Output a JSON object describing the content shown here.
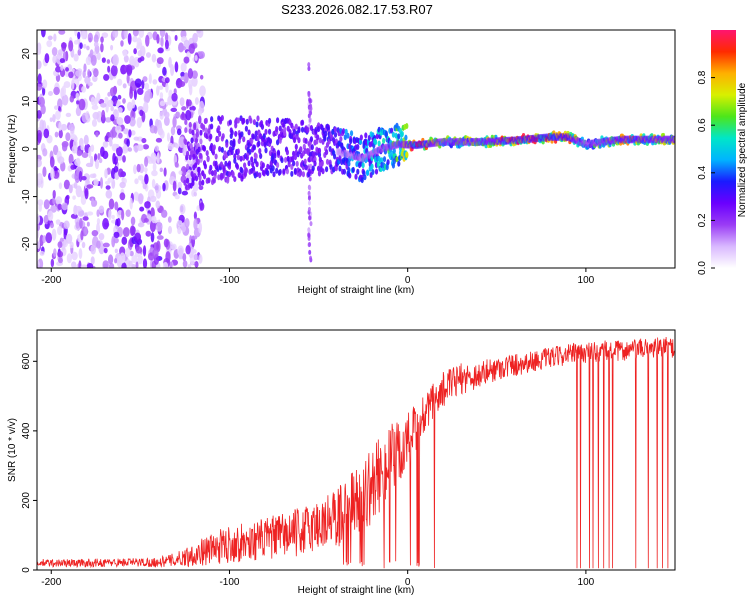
{
  "figure": {
    "title": "S233.2026.082.17.53.R07"
  },
  "colorbar": {
    "label": "Normalized spectral amplitude",
    "ticks": [
      "0.0",
      "0.2",
      "0.4",
      "0.6",
      "0.8"
    ],
    "tick_values": [
      0.0,
      0.2,
      0.4,
      0.6,
      0.8
    ],
    "range": [
      0,
      1
    ],
    "gradient_stops": [
      "#ffffff",
      "#d9b8ff",
      "#9a3cf5",
      "#6a00ff",
      "#1a1aff",
      "#00b4ff",
      "#00e6c8",
      "#4de61a",
      "#d8f000",
      "#ffb000",
      "#ff2a00",
      "#ff1470"
    ]
  },
  "colors": {
    "snr_line": "#ee2222",
    "axis": "#000000"
  },
  "chart_data": [
    {
      "type": "heatmap",
      "title": "",
      "xlabel": "Height of straight line (km)",
      "ylabel": "Frequency (Hz)",
      "xlim": [
        -208,
        150
      ],
      "ylim": [
        -25,
        25
      ],
      "xticks": [
        -200,
        -100,
        0,
        100
      ],
      "xtick_labels": [
        "-200",
        "-100",
        "0",
        "100"
      ],
      "yticks": [
        -20,
        -10,
        0,
        10,
        20
      ],
      "ytick_labels": [
        "-20",
        "-10",
        "0",
        "10",
        "20"
      ],
      "description_series": [
        {
          "name": "noise_spread",
          "x_range": [
            -208,
            -125
          ],
          "freq_range": [
            -25,
            25
          ],
          "amplitude": [
            0.05,
            0.3
          ]
        },
        {
          "name": "frequency_track",
          "x": [
            -125,
            -100,
            -80,
            -60,
            -45,
            -35,
            -25,
            -15,
            -5,
            5,
            20,
            40,
            60,
            80,
            90,
            100,
            120,
            150
          ],
          "freq": [
            -1.5,
            0,
            0.5,
            0,
            0,
            -1,
            -2,
            0,
            1,
            0.8,
            1.5,
            1.5,
            1.8,
            2.5,
            2.5,
            1,
            2,
            2
          ],
          "amplitude": [
            0.25,
            0.3,
            0.3,
            0.3,
            0.3,
            0.4,
            0.45,
            0.5,
            0.6,
            0.95,
            0.6,
            0.7,
            0.85,
            0.9,
            0.9,
            0.5,
            0.8,
            0.7
          ]
        },
        {
          "name": "vertical_artifact",
          "x": -55,
          "freq_range": [
            -25,
            18
          ],
          "amplitude": 0.15
        }
      ]
    },
    {
      "type": "line",
      "title": "",
      "xlabel": "Height of straight line (km)",
      "ylabel": "SNR (10 * v/v)",
      "xlim": [
        -208,
        150
      ],
      "ylim": [
        0,
        690
      ],
      "xticks": [
        -200,
        -100,
        0,
        100
      ],
      "xtick_labels": [
        "-200",
        "-100",
        "0",
        "100"
      ],
      "yticks": [
        0,
        200,
        400,
        600
      ],
      "ytick_labels": [
        "0",
        "200",
        "400",
        "600"
      ],
      "series": [
        {
          "name": "SNR",
          "x": [
            -208,
            -180,
            -160,
            -140,
            -130,
            -120,
            -110,
            -100,
            -90,
            -80,
            -70,
            -60,
            -50,
            -40,
            -30,
            -20,
            -15,
            -10,
            -5,
            0,
            5,
            10,
            15,
            20,
            30,
            40,
            50,
            60,
            70,
            80,
            90,
            100,
            110,
            120,
            130,
            140,
            150
          ],
          "mean": [
            20,
            20,
            22,
            22,
            30,
            45,
            60,
            75,
            80,
            90,
            100,
            110,
            130,
            150,
            190,
            240,
            280,
            310,
            330,
            370,
            400,
            450,
            480,
            520,
            550,
            560,
            580,
            590,
            600,
            610,
            620,
            625,
            630,
            630,
            635,
            640,
            640
          ],
          "spread": [
            12,
            12,
            12,
            14,
            20,
            35,
            45,
            55,
            55,
            60,
            65,
            70,
            80,
            90,
            100,
            110,
            110,
            110,
            100,
            90,
            80,
            70,
            60,
            50,
            45,
            40,
            35,
            35,
            30,
            30,
            30,
            30,
            30,
            30,
            30,
            30,
            30
          ],
          "dropouts_to_zero": [
            95,
            97,
            102,
            104,
            107,
            110,
            113,
            115,
            128,
            135,
            140,
            143,
            146
          ]
        }
      ]
    }
  ]
}
